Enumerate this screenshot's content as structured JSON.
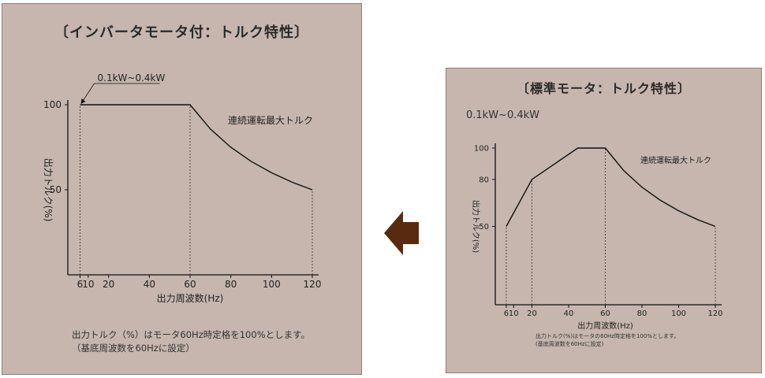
{
  "left_panel": {
    "title": "〔インバータモータ付：トルク特性〕",
    "note_lines": [
      "出力トルク（%）はモータ60Hz時定格を100%とします。",
      "（基底周波数を60Hzに設定）"
    ]
  },
  "right_panel": {
    "title": "〔標準モータ：トルク特性〕",
    "range_text": "0.1kW~0.4kW",
    "note_lines": [
      "出力トルク(%)はモータの60Hz時定格を100%とします。",
      "(基底周波数を60Hzに設定)"
    ]
  },
  "arrow": {
    "icon": "arrow-left-icon",
    "color": "#5a2a0e"
  },
  "chart_data": [
    {
      "type": "line",
      "title": "〔インバータモータ付：トルク特性〕",
      "xlabel": "出力周波数(Hz)",
      "ylabel": "出力トルク(%)",
      "xticks": [
        6,
        10,
        20,
        40,
        60,
        80,
        100,
        120
      ],
      "yticks": [
        50,
        100
      ],
      "xlim": [
        0,
        120
      ],
      "ylim": [
        0,
        100
      ],
      "series": [
        {
          "name": "連続運転最大トルク",
          "x": [
            6,
            10,
            20,
            30,
            40,
            50,
            60,
            70,
            80,
            90,
            100,
            110,
            120
          ],
          "y": [
            100,
            100,
            100,
            100,
            100,
            100,
            100,
            85.7,
            75,
            66.7,
            60,
            54.5,
            50
          ]
        }
      ],
      "guides_x": [
        6,
        60,
        120
      ],
      "annotations": [
        {
          "text": "0.1kW~0.4kW",
          "x": 6,
          "y": 100
        }
      ],
      "grid": false
    },
    {
      "type": "line",
      "title": "〔標準モータ：トルク特性〕",
      "xlabel": "出力周波数(Hz)",
      "ylabel": "出力トルク(%)",
      "xticks": [
        6,
        10,
        20,
        40,
        60,
        80,
        100,
        120
      ],
      "yticks": [
        50,
        80,
        100
      ],
      "xlim": [
        0,
        120
      ],
      "ylim": [
        0,
        100
      ],
      "series": [
        {
          "name": "連続運転最大トルク",
          "x": [
            6,
            20,
            45,
            60,
            70,
            80,
            90,
            100,
            110,
            120
          ],
          "y": [
            50,
            80,
            100,
            100,
            85.7,
            75,
            66.7,
            60,
            54.5,
            50
          ]
        }
      ],
      "guides_x": [
        6,
        20,
        60,
        120
      ],
      "grid": false
    }
  ]
}
